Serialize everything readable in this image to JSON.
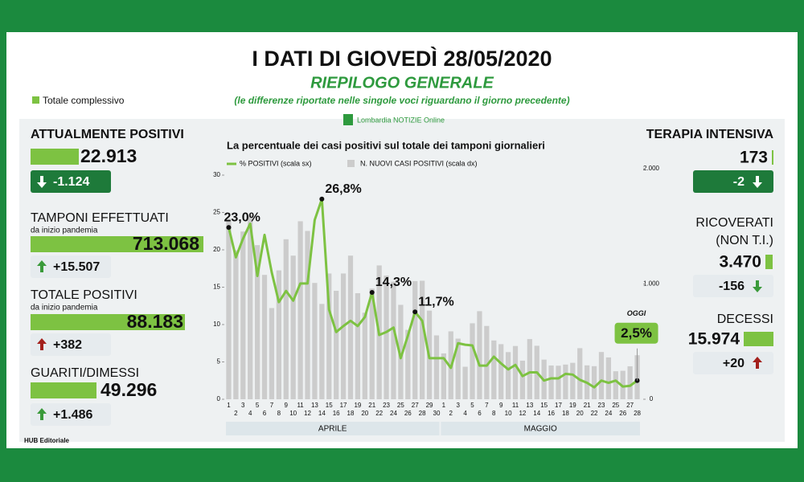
{
  "header": {
    "title": "I DATI DI GIOVEDÌ 28/05/2020",
    "subtitle": "RIEPILOGO GENERALE",
    "note": "(le differenze riportate nelle singole voci riguardano il giorno precedente)",
    "legend": "Totale complessivo",
    "logo": "Lombardia NOTIZIE Online"
  },
  "left_panels": [
    {
      "title": "ATTUALMENTE POSITIVI",
      "value": "22.913",
      "delta": "-1.124",
      "arrow": "down",
      "arrow_color": "#ffffff"
    },
    {
      "title": "TAMPONI EFFETTUATI",
      "sub": "da inizio pandemia",
      "value": "713.068",
      "delta": "+15.507",
      "arrow": "up",
      "arrow_color": "#3a9a3a"
    },
    {
      "title": "TOTALE POSITIVI",
      "sub": "da inizio pandemia",
      "value": "88.183",
      "delta": "+382",
      "arrow": "up",
      "arrow_color": "#a3201c"
    },
    {
      "title": "GUARITI/DIMESSI",
      "value": "49.296",
      "delta": "+1.486",
      "arrow": "up",
      "arrow_color": "#3a9a3a"
    }
  ],
  "right_panels": [
    {
      "title": "TERAPIA INTENSIVA",
      "value": "173",
      "delta": "-2",
      "arrow": "down",
      "arrow_color": "#ffffff"
    },
    {
      "title": "RICOVERATI",
      "title2": "(NON T.I.)",
      "value": "3.470",
      "delta": "-156",
      "arrow": "down",
      "arrow_color": "#3a9a3a"
    },
    {
      "title": "DECESSI",
      "value": "15.974",
      "delta": "+20",
      "arrow": "up",
      "arrow_color": "#a3201c"
    }
  ],
  "footer": "HUB Editoriale",
  "chart_data": {
    "type": "bar-line",
    "title": "La percentuale dei casi positivi sul totale dei tamponi giornalieri",
    "categories": [
      "1",
      "2",
      "3",
      "4",
      "5",
      "6",
      "7",
      "8",
      "9",
      "10",
      "11",
      "12",
      "13",
      "14",
      "15",
      "16",
      "17",
      "18",
      "19",
      "20",
      "21",
      "22",
      "23",
      "24",
      "25",
      "26",
      "27",
      "28",
      "29",
      "30",
      "1",
      "2",
      "3",
      "4",
      "5",
      "6",
      "7",
      "8",
      "9",
      "10",
      "11",
      "12",
      "13",
      "14",
      "15",
      "16",
      "17",
      "18",
      "19",
      "20",
      "21",
      "22",
      "23",
      "24",
      "25",
      "26",
      "27",
      "28"
    ],
    "months": [
      {
        "name": "APRILE",
        "count": 30
      },
      {
        "name": "MAGGIO",
        "count": 28
      }
    ],
    "series": [
      {
        "name": "N. NUOVI CASI POSITIVI (scala dx)",
        "color": "#cccccc",
        "axis": "y2",
        "type": "bar",
        "values": [
          1565,
          1292,
          1455,
          1598,
          1337,
          1079,
          791,
          1118,
          1388,
          1246,
          1544,
          1460,
          1009,
          827,
          1091,
          941,
          1091,
          1246,
          920,
          751,
          960,
          1161,
          1073,
          1020,
          819,
          602,
          1025,
          1028,
          769,
          554,
          398,
          589,
          526,
          282,
          659,
          764,
          636,
          510,
          478,
          409,
          462,
          335,
          522,
          464,
          344,
          293,
          291,
          301,
          316,
          443,
          294,
          287,
          410,
          363,
          243,
          247,
          286,
          382
        ]
      },
      {
        "name": "% POSITIVI (scala sx)",
        "color": "#7dc242",
        "type": "line",
        "values": [
          23.0,
          19,
          21.5,
          23.5,
          16.5,
          22,
          17,
          13,
          14.5,
          13.2,
          15.5,
          15.5,
          24,
          26.8,
          12,
          9,
          9.8,
          10.5,
          9.8,
          11,
          14.3,
          8.6,
          9,
          9.6,
          5.5,
          8.5,
          11.7,
          10.5,
          5.5,
          5.5,
          5.5,
          4.2,
          7.5,
          7.3,
          7.2,
          4.5,
          4.5,
          5.7,
          4.8,
          4.0,
          4.6,
          3.1,
          3.6,
          3.6,
          2.5,
          2.8,
          2.8,
          3.4,
          3.3,
          2.6,
          2.2,
          1.6,
          2.5,
          2.2,
          2.5,
          1.7,
          1.8,
          2.5
        ],
        "value_labels": [
          "23,0%",
          null,
          null,
          null,
          null,
          null,
          null,
          null,
          null,
          null,
          null,
          null,
          null,
          "26,8%",
          null,
          null,
          null,
          null,
          null,
          null,
          "14,3%",
          null,
          null,
          null,
          null,
          null,
          "11,7%",
          null,
          null,
          null,
          null,
          null,
          null,
          null,
          null,
          null,
          null,
          null,
          null,
          null,
          null,
          null,
          null,
          null,
          null,
          null,
          null,
          null,
          null,
          null,
          null,
          null,
          null,
          null,
          null,
          null,
          null,
          "2,5%"
        ]
      }
    ],
    "annotation": "OGGI",
    "ylim": [
      0,
      30
    ],
    "yticks": [
      0,
      5,
      10,
      15,
      20,
      25,
      30
    ],
    "y2lim": [
      0,
      2000
    ],
    "y2ticks": [
      0,
      {
        "value": 1000,
        "label": "1.000"
      },
      {
        "value": 2000,
        "label": "2.000"
      }
    ]
  }
}
